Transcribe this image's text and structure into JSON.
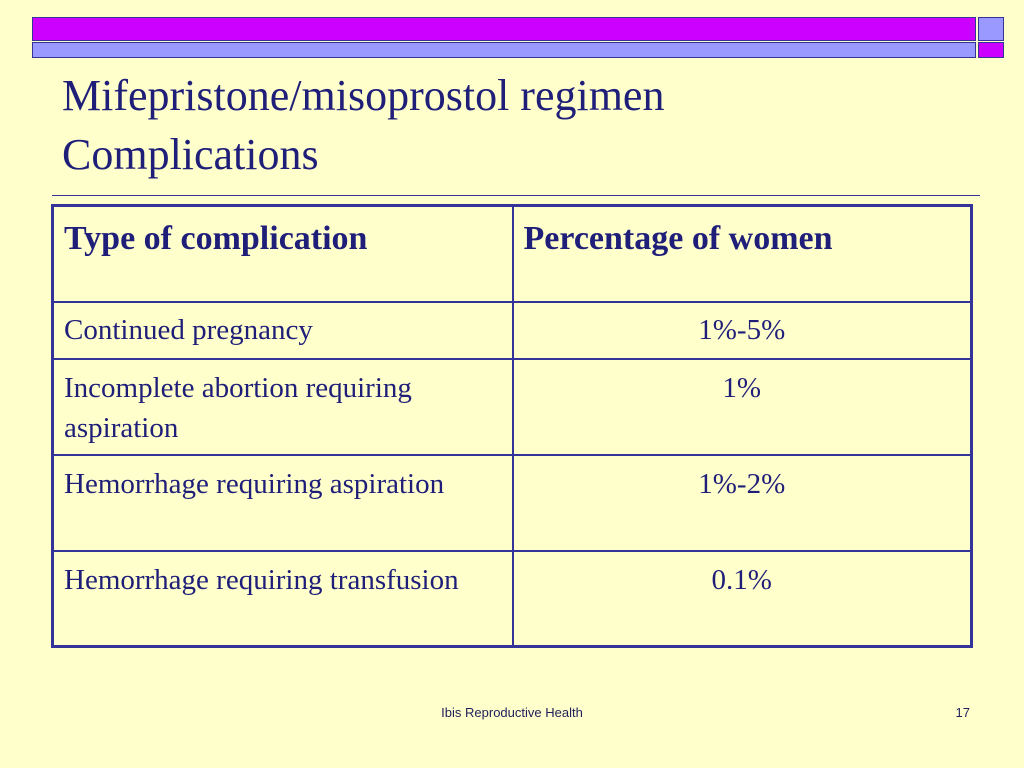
{
  "slide": {
    "title_line1": "Mifepristone/misoprostol regimen",
    "title_line2": "Complications",
    "footer": "Ibis Reproductive Health",
    "page_number": "17"
  },
  "table": {
    "headers": [
      "Type of complication",
      "Percentage of women"
    ],
    "rows": [
      {
        "complication": "Continued pregnancy",
        "percentage": "1%-5%"
      },
      {
        "complication": "Incomplete abortion requiring aspiration",
        "percentage": "1%"
      },
      {
        "complication": "Hemorrhage requiring aspiration",
        "percentage": "1%-2%"
      },
      {
        "complication": "Hemorrhage requiring transfusion",
        "percentage": "0.1%"
      }
    ]
  },
  "colors": {
    "background": "#FFFFCC",
    "text": "#1F1F7A",
    "magenta_bar": "#CC00FF",
    "lavender_bar": "#9999FF",
    "border": "#33339A"
  }
}
